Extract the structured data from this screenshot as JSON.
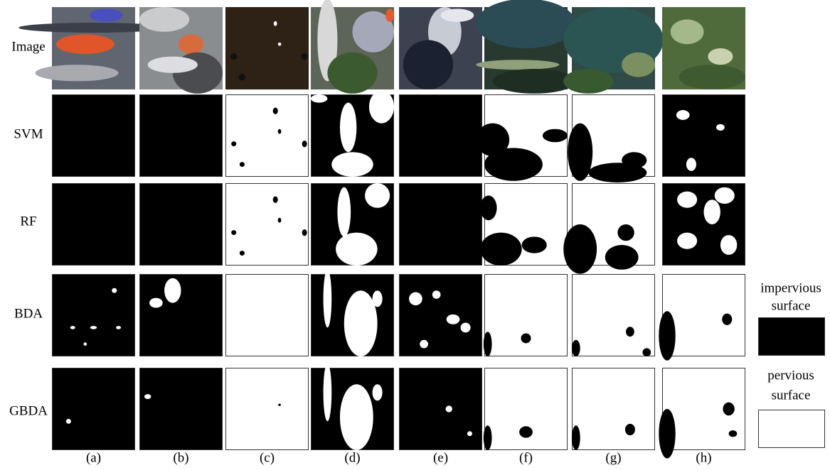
{
  "row_labels": [
    "Image",
    "SVM",
    "RF",
    "BDA",
    "GBDA"
  ],
  "column_labels": [
    "(a)",
    "(b)",
    "(c)",
    "(d)",
    "(e)",
    "(f)",
    "(g)",
    "(h)"
  ],
  "legend": [
    {
      "lines": [
        "impervious",
        "surface"
      ]
    },
    {
      "lines": [
        "pervious",
        "surface"
      ]
    }
  ]
}
